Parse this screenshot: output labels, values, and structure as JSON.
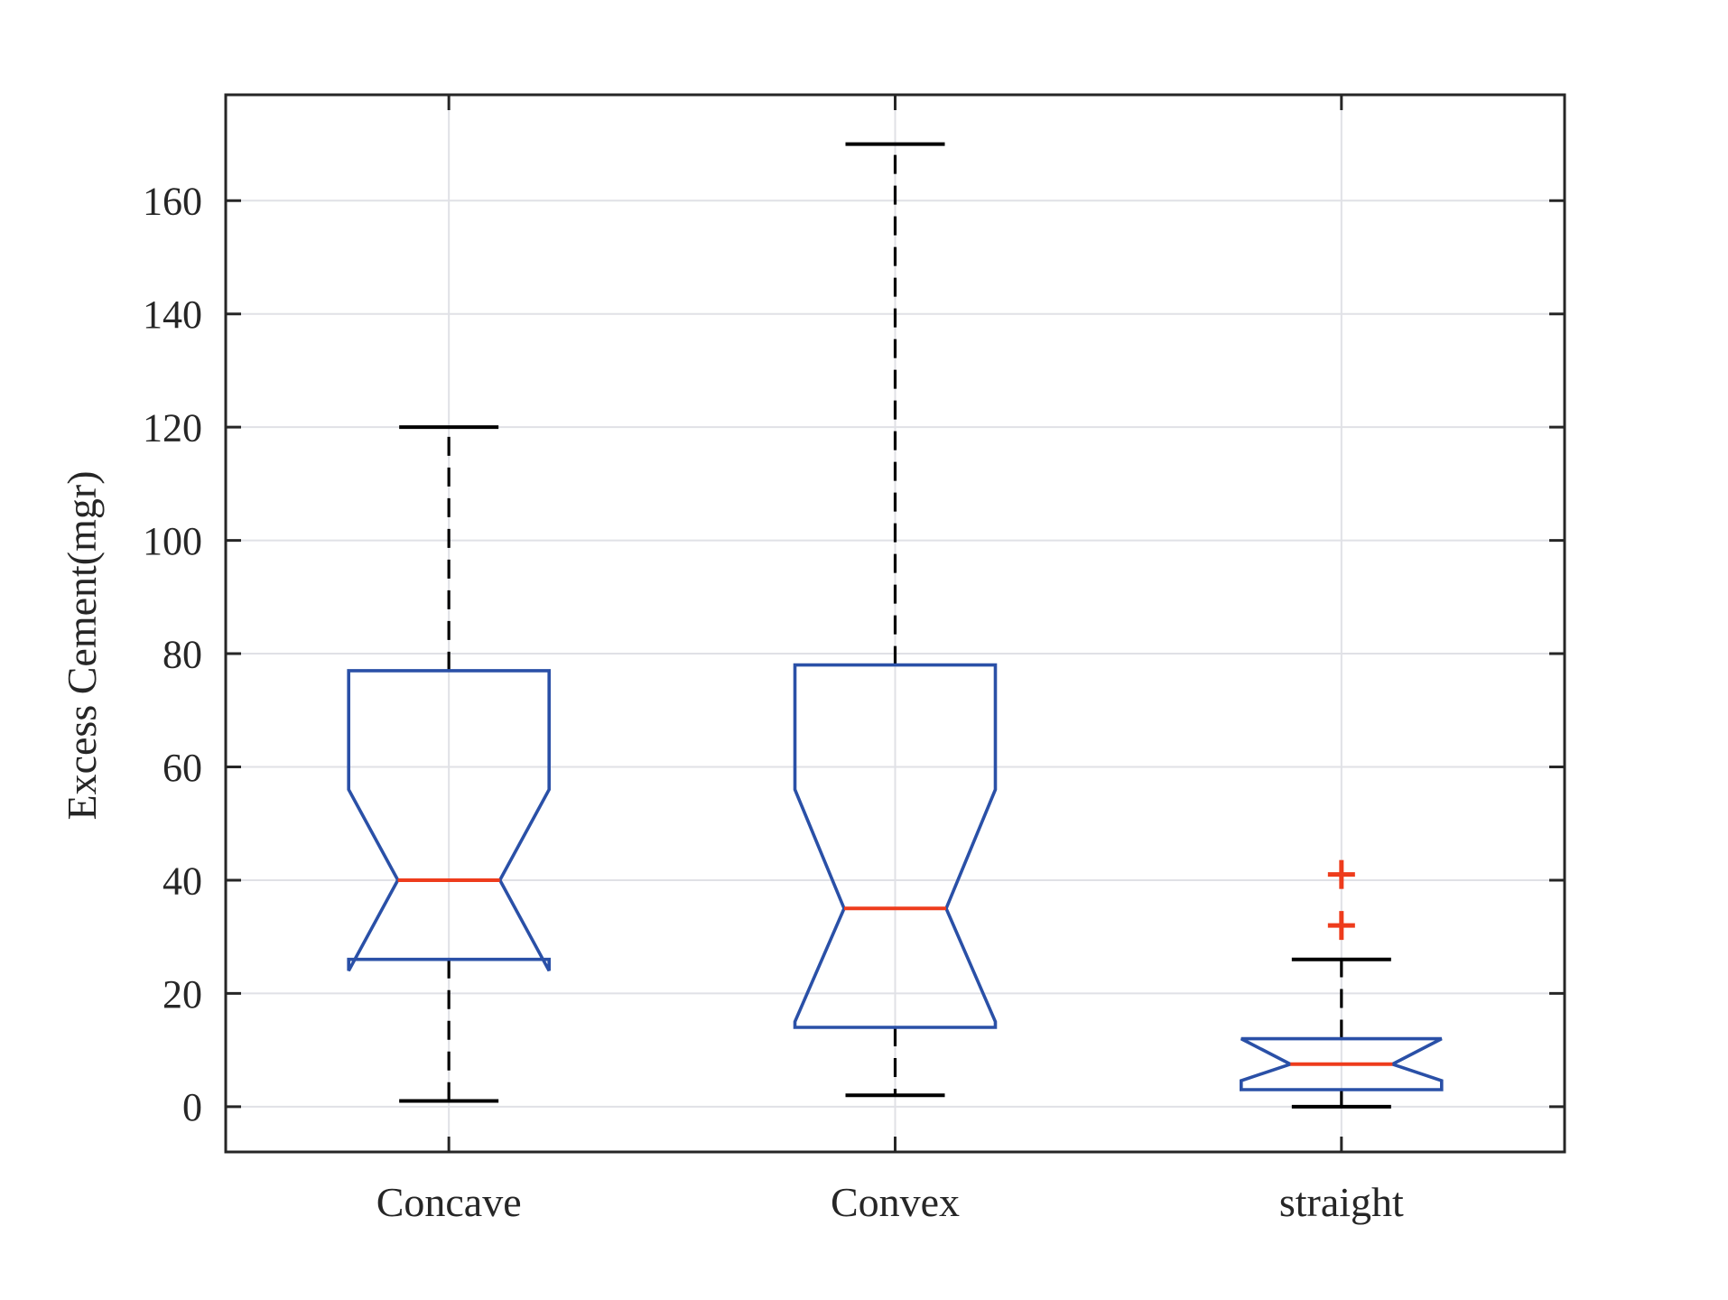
{
  "figure": {
    "background": "#ffffff"
  },
  "chart_data": {
    "type": "boxplot",
    "title": "",
    "xlabel": "",
    "ylabel": "Excess Cement(mgr)",
    "categories": [
      "Concave",
      "Convex",
      "straight"
    ],
    "yticks": [
      0,
      20,
      40,
      60,
      80,
      100,
      120,
      140,
      160
    ],
    "ylim": [
      -8,
      178.7
    ],
    "grid": true,
    "notched": true,
    "series": [
      {
        "name": "Concave",
        "whisker_low": 1,
        "q1": 26,
        "median": 40,
        "q3": 77,
        "whisker_high": 120,
        "notch_low": 24,
        "notch_high": 56,
        "outliers": []
      },
      {
        "name": "Convex",
        "whisker_low": 2,
        "q1": 14,
        "median": 35,
        "q3": 78,
        "whisker_high": 170,
        "notch_low": 15,
        "notch_high": 56,
        "outliers": []
      },
      {
        "name": "straight",
        "whisker_low": 0,
        "q1": 3,
        "median": 7.5,
        "q3": 12,
        "whisker_high": 26,
        "notch_low": 4.6,
        "notch_high": 12,
        "outliers": [
          41,
          32
        ]
      }
    ],
    "colors": {
      "box": "#2a50a7",
      "median": "#ee3c1c",
      "outlier": "#ee3c1c",
      "whisker": "#000000",
      "cap": "#000000",
      "grid": "#e0e1e6",
      "axis": "#262626",
      "text": "#262626"
    }
  }
}
